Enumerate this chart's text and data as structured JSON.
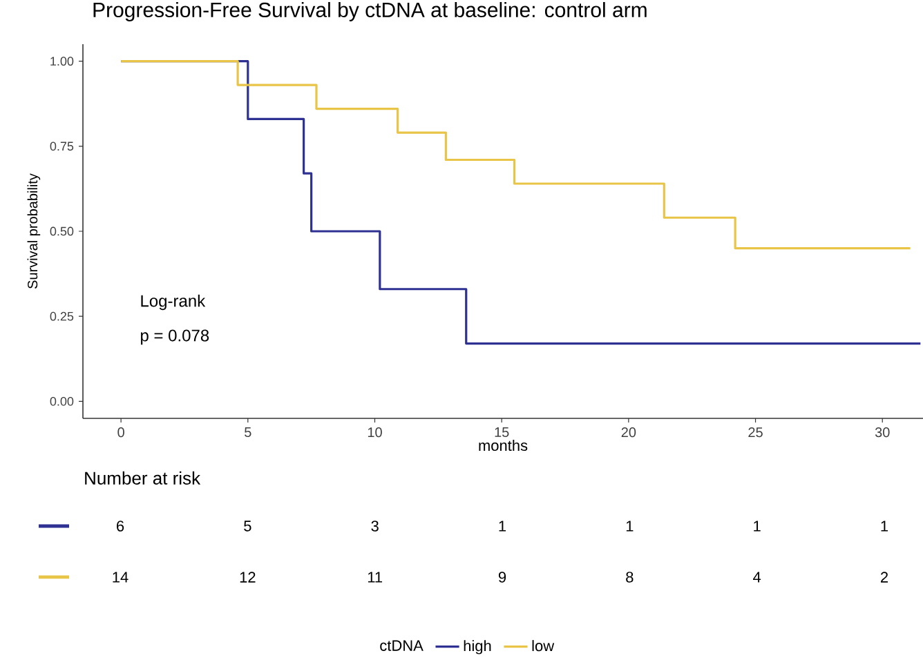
{
  "chart_data": [
    {
      "type": "step",
      "title": "Progression-Free Survival by ctDNA at baseline: control arm",
      "xlabel": "months",
      "ylabel": "Survival probability",
      "legend_title": "ctDNA",
      "annotations": [
        "Log-rank",
        "p = 0.078"
      ],
      "series": [
        {
          "name": "high",
          "color": "#2e3192",
          "x": [
            0,
            5,
            7.2,
            7.5,
            10.2,
            13.6,
            31.5
          ],
          "values": [
            1,
            0.83,
            0.67,
            0.5,
            0.33,
            0.17,
            0.17
          ]
        },
        {
          "name": "low",
          "color": "#e8c547",
          "x": [
            0,
            4.6,
            7.7,
            10.9,
            12.8,
            15.5,
            21.4,
            24.2,
            31.1
          ],
          "values": [
            1,
            0.93,
            0.86,
            0.79,
            0.71,
            0.64,
            0.54,
            0.45,
            0.45
          ]
        }
      ],
      "xlim": [
        -1.5,
        31.6
      ],
      "ylim": [
        -0.05,
        1.05
      ],
      "xticks": [
        0,
        5,
        10,
        15,
        20,
        25,
        30
      ],
      "yticks": [
        {
          "value": 0,
          "label": "0.00"
        },
        {
          "value": 0.25,
          "label": "0.25"
        },
        {
          "value": 0.5,
          "label": "0.50"
        },
        {
          "value": 0.75,
          "label": "0.75"
        },
        {
          "value": 1,
          "label": "1.00"
        }
      ],
      "legend": "bottom",
      "line_style": "solid"
    },
    {
      "type": "other",
      "title": "Number at risk",
      "colors": [
        "#2e3192",
        "#e8c547"
      ],
      "annotations": [
        "6",
        "5",
        "3",
        "1",
        "1",
        "1",
        "1",
        "14",
        "12",
        "11",
        "9",
        "8",
        "4",
        "2"
      ]
    }
  ]
}
